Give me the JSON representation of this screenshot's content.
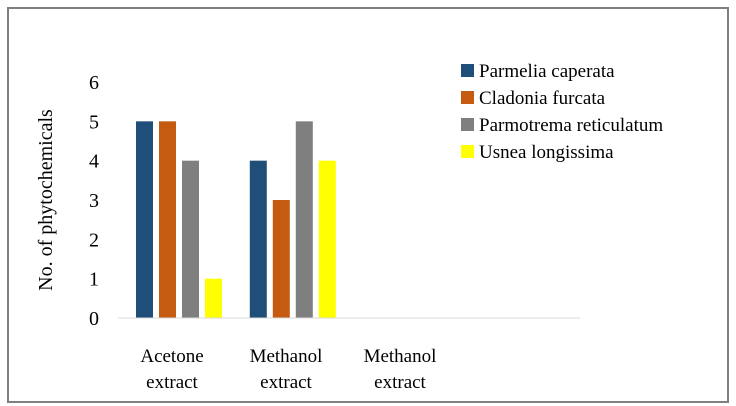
{
  "chart_data": {
    "type": "bar",
    "title": "",
    "xlabel": "",
    "ylabel": "No. of phytochemicals",
    "ylim": [
      0,
      6
    ],
    "yticks": [
      "0",
      "1",
      "2",
      "3",
      "4",
      "5",
      "6"
    ],
    "grid": false,
    "legend_position": "top-right",
    "categories": [
      {
        "line1": "Acetone",
        "line2": "extract"
      },
      {
        "line1": "Methanol",
        "line2": "extract"
      },
      {
        "line1": "Methanol",
        "line2": "extract"
      }
    ],
    "series": [
      {
        "name": "Parmelia caperata",
        "color": "#1F4E79",
        "values": [
          5,
          4,
          null
        ]
      },
      {
        "name": "Cladonia furcata",
        "color": "#C55A11",
        "values": [
          5,
          3,
          null
        ]
      },
      {
        "name": "Parmotrema reticulatum",
        "color": "#7F7F7F",
        "values": [
          4,
          5,
          null
        ]
      },
      {
        "name": "Usnea longissima",
        "color": "#FFFF00",
        "values": [
          1,
          4,
          null
        ]
      }
    ]
  }
}
